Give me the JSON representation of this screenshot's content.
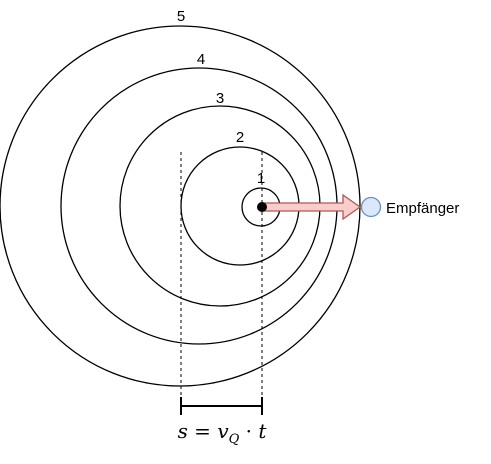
{
  "diagram": {
    "wavefronts": [
      {
        "label": "1"
      },
      {
        "label": "2"
      },
      {
        "label": "3"
      },
      {
        "label": "4"
      },
      {
        "label": "5"
      }
    ],
    "receiver": {
      "label": "Empfänger"
    },
    "formula": {
      "s": "s",
      "equals": " = ",
      "v": "v",
      "sub": "Q",
      "dot": " · ",
      "t": "t"
    },
    "colors": {
      "arrow_fill": "#f8cecc",
      "arrow_stroke": "#b85450",
      "receiver_fill": "#dae8fc",
      "receiver_stroke": "#6c8ebf",
      "line": "#000000"
    }
  }
}
